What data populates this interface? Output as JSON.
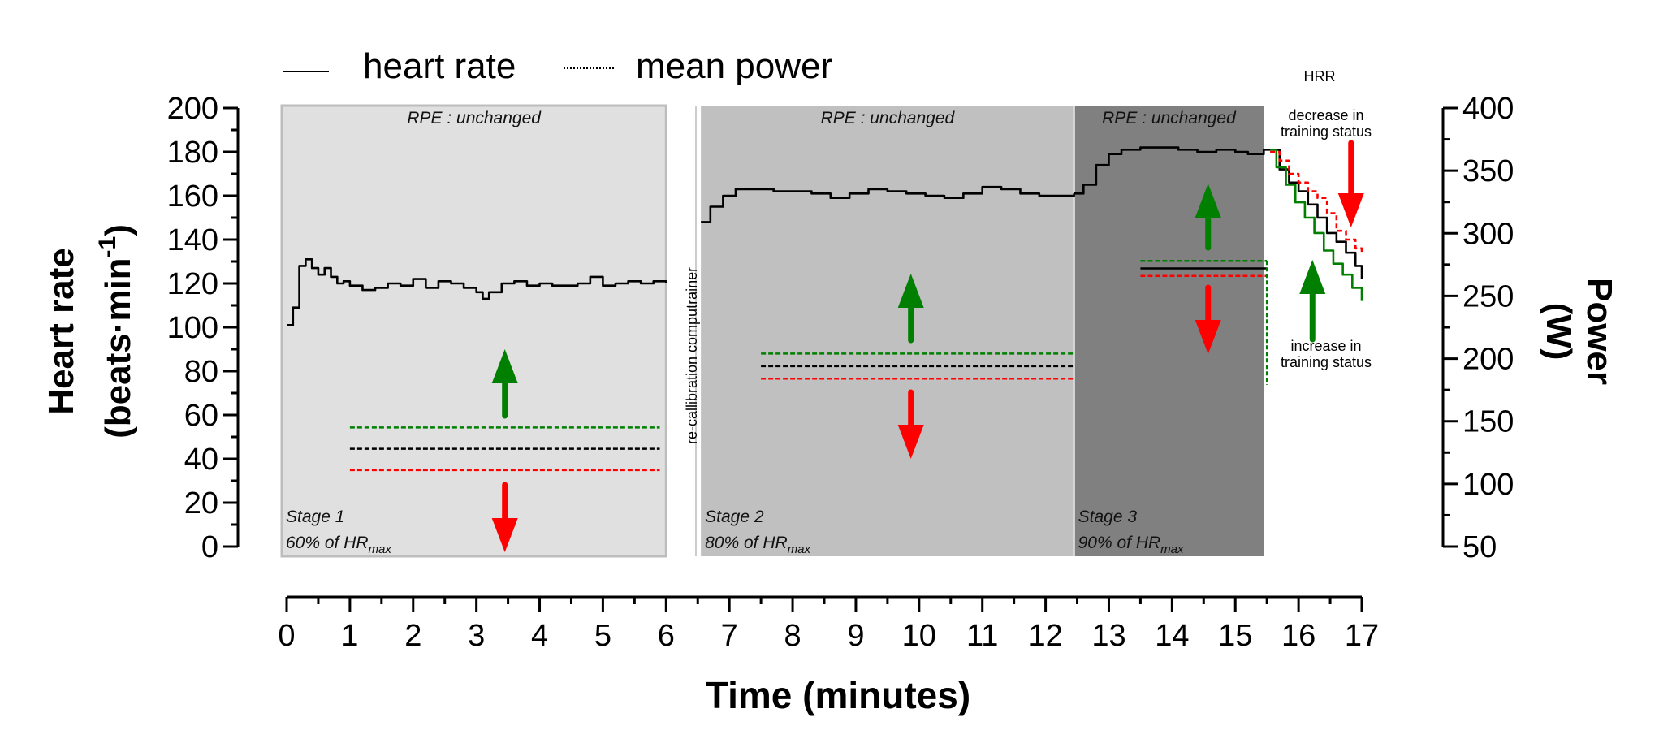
{
  "chart_data": {
    "type": "line",
    "title": "",
    "xlabel": "Time (minutes)",
    "ylabel": "Heart rate (beats·min-1)",
    "ylabel_main": "Heart rate",
    "ylabel_unit_prefix": "(beats·min",
    "ylabel_unit_sup": "-1",
    "ylabel_unit_suffix": ")",
    "y2label": "Power",
    "y2label_unit": "(W)",
    "xlim": [
      0,
      17
    ],
    "ylim": [
      0,
      200
    ],
    "y2lim": [
      50,
      400
    ],
    "xticks": [
      0,
      1,
      2,
      3,
      4,
      5,
      6,
      7,
      8,
      9,
      10,
      11,
      12,
      13,
      14,
      15,
      16,
      17
    ],
    "yticks": [
      0,
      20,
      40,
      60,
      80,
      100,
      120,
      140,
      160,
      180,
      200
    ],
    "y2ticks": [
      50,
      100,
      150,
      200,
      250,
      300,
      350,
      400
    ],
    "legend": {
      "placement": "top-left",
      "entries": [
        {
          "label": "heart rate",
          "style": "solid"
        },
        {
          "label": "mean power",
          "style": "dotted"
        }
      ]
    },
    "stages": [
      {
        "name": "Stage 1",
        "intensity": "60% of HR",
        "sub": "max",
        "rpe": "RPE : unchanged",
        "start": 0,
        "end": 6.0,
        "color": "#e0e0e0"
      },
      {
        "name": "Stage 2",
        "intensity": "80% of HR",
        "sub": "max",
        "rpe": "RPE : unchanged",
        "start": 6.55,
        "end": 12.45,
        "color": "#c0c0c0"
      },
      {
        "name": "Stage 3",
        "intensity": "90% of HR",
        "sub": "max",
        "rpe": "RPE : unchanged",
        "start": 12.45,
        "end": 15.45,
        "color": "#808080"
      }
    ],
    "series": [
      {
        "name": "heart rate",
        "axis": "left",
        "color": "#000000",
        "x": [
          0,
          0.1,
          0.2,
          0.3,
          0.4,
          0.5,
          0.6,
          0.7,
          0.8,
          0.9,
          1.0,
          1.2,
          1.4,
          1.6,
          1.8,
          2.0,
          2.2,
          2.4,
          2.6,
          2.8,
          3.0,
          3.1,
          3.2,
          3.4,
          3.6,
          3.8,
          4.0,
          4.2,
          4.4,
          4.6,
          4.8,
          5.0,
          5.2,
          5.4,
          5.6,
          5.8,
          6.0
        ],
        "values": [
          101,
          109,
          128,
          131,
          127,
          124,
          127,
          123,
          120,
          121,
          119,
          117,
          118,
          120,
          119,
          122,
          118,
          121,
          120,
          118,
          116,
          113,
          116,
          120,
          121,
          119,
          120,
          119,
          119,
          120,
          123,
          119,
          120,
          121,
          120,
          121,
          120
        ]
      },
      {
        "name": "heart rate (stage 2)",
        "axis": "left",
        "color": "#000000",
        "x": [
          6.55,
          6.7,
          6.9,
          7.1,
          7.4,
          7.7,
          8.0,
          8.3,
          8.6,
          8.9,
          9.2,
          9.5,
          9.8,
          10.1,
          10.4,
          10.7,
          11.0,
          11.3,
          11.6,
          11.9,
          12.2,
          12.45
        ],
        "values": [
          148,
          155,
          160,
          163,
          163,
          162,
          162,
          161,
          159,
          161,
          163,
          162,
          161,
          160,
          159,
          161,
          164,
          163,
          161,
          160,
          160,
          161
        ]
      },
      {
        "name": "heart rate (stage 3)",
        "axis": "left",
        "color": "#000000",
        "x": [
          12.45,
          12.6,
          12.8,
          13.0,
          13.2,
          13.5,
          13.8,
          14.1,
          14.4,
          14.7,
          15.0,
          15.2,
          15.45,
          15.55
        ],
        "values": [
          161,
          165,
          174,
          179,
          181,
          182,
          182,
          181,
          180,
          181,
          180,
          179,
          181,
          181
        ]
      },
      {
        "name": "HRR reference",
        "axis": "left",
        "color": "#000000",
        "x": [
          15.55,
          15.7,
          15.85,
          16.0,
          16.15,
          16.3,
          16.45,
          16.6,
          16.75,
          16.9,
          17.0
        ],
        "values": [
          181,
          172,
          166,
          162,
          156,
          150,
          143,
          139,
          134,
          128,
          122
        ]
      },
      {
        "name": "HRR increase in training status",
        "axis": "left",
        "color": "#007f00",
        "x": [
          15.55,
          15.65,
          15.8,
          15.95,
          16.1,
          16.25,
          16.4,
          16.55,
          16.7,
          16.85,
          17.0
        ],
        "values": [
          181,
          173,
          165,
          157,
          150,
          143,
          135,
          129,
          124,
          118,
          112
        ]
      },
      {
        "name": "HRR decrease in training status",
        "axis": "left",
        "color": "#ff0000",
        "dashed": true,
        "x": [
          15.55,
          15.7,
          15.85,
          16.0,
          16.15,
          16.3,
          16.45,
          16.6,
          16.75,
          16.9,
          17.0
        ],
        "values": [
          180,
          176,
          170,
          166,
          162,
          159,
          152,
          144,
          140,
          136,
          133
        ]
      }
    ],
    "power_levels": [
      {
        "stage": "Stage 1",
        "start": 1.0,
        "end": 5.9,
        "increase": 145,
        "mean": 128,
        "decrease": 111
      },
      {
        "stage": "Stage 2",
        "start": 7.5,
        "end": 12.45,
        "increase": 204,
        "mean": 194,
        "decrease": 184
      },
      {
        "stage": "Stage 3",
        "start": 13.5,
        "end": 15.5,
        "increase": 278,
        "mean": 272,
        "decrease": 266,
        "mean_style": "solid"
      }
    ],
    "annotations": {
      "recalibration": "re-callibration computrainer",
      "hrr": "HRR",
      "decrease": [
        "decrease in",
        "training status"
      ],
      "increase": [
        "increase in",
        "training status"
      ]
    },
    "colors": {
      "increase": "#007f00",
      "decrease": "#ff0000",
      "mean": "#000000"
    }
  }
}
